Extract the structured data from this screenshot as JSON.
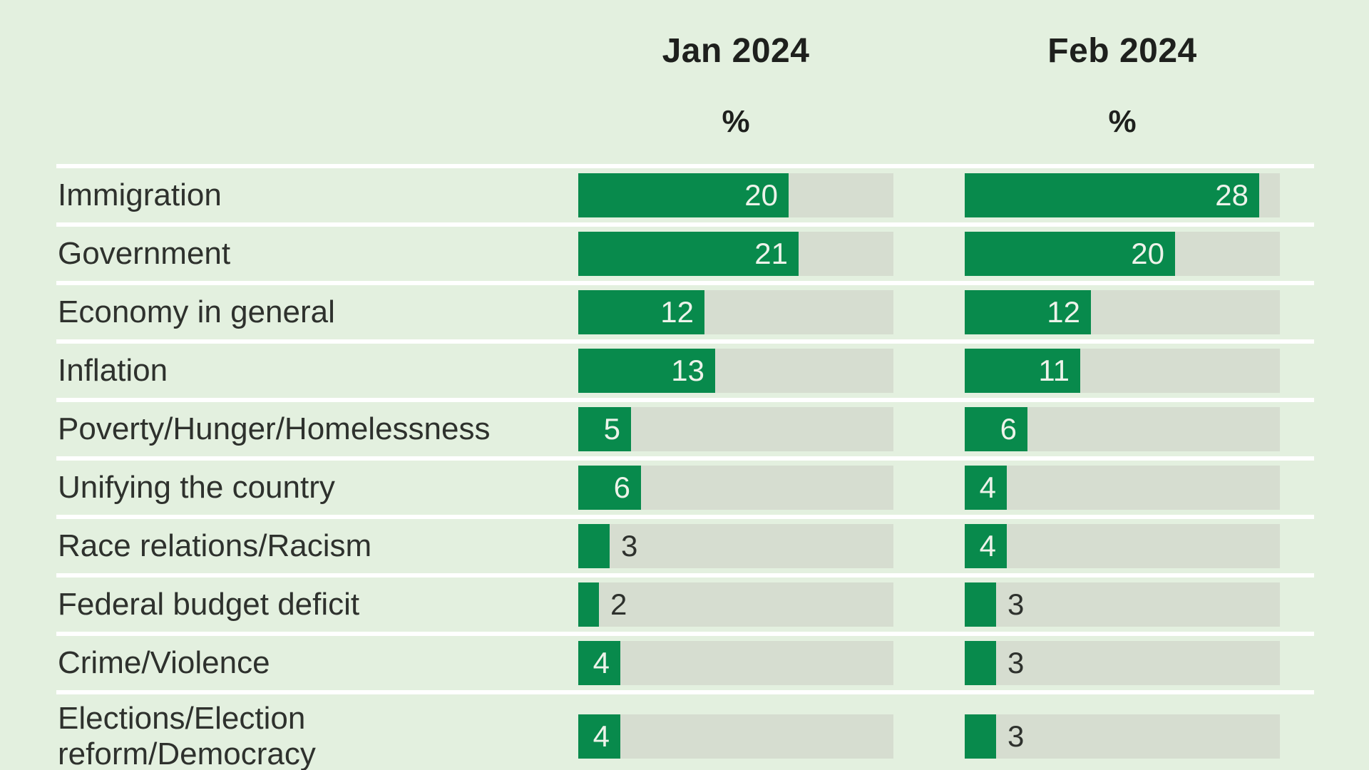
{
  "header": {
    "col1": "Jan 2024",
    "col2": "Feb 2024",
    "unit": "%"
  },
  "chart_data": {
    "type": "bar",
    "orientation": "horizontal",
    "title": "",
    "categories": [
      "Immigration",
      "Government",
      "Economy in general",
      "Inflation",
      "Poverty/Hunger/Homelessness",
      "Unifying the country",
      "Race relations/Racism",
      "Federal budget deficit",
      "Crime/Violence",
      "Elections/Election\nreform/Democracy"
    ],
    "series": [
      {
        "name": "Jan 2024",
        "unit": "%",
        "values": [
          20,
          21,
          12,
          13,
          5,
          6,
          3,
          2,
          4,
          4
        ]
      },
      {
        "name": "Feb 2024",
        "unit": "%",
        "values": [
          28,
          20,
          12,
          11,
          6,
          4,
          4,
          3,
          3,
          3
        ]
      }
    ],
    "xlim": [
      0,
      30
    ],
    "grid": false,
    "legend_position": "column headers above each bar group",
    "value_label_inside_threshold": 4,
    "colors": {
      "background": "#e3f0df",
      "bar": "#088a4c",
      "track": "#d6ddd0",
      "separator": "#ffffff",
      "text_dark": "#2e312d",
      "value_inside": "#edf3ea"
    }
  }
}
